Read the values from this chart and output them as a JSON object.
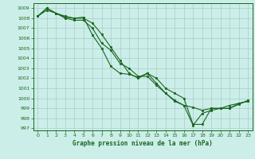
{
  "title": "Graphe pression niveau de la mer (hPa)",
  "bg_color": "#cceee8",
  "grid_color": "#aacccc",
  "line_color": "#1a6620",
  "marker_color": "#1a6620",
  "xlim": [
    -0.5,
    23.5
  ],
  "ylim": [
    996.8,
    1009.5
  ],
  "xticks": [
    0,
    1,
    2,
    3,
    4,
    5,
    6,
    7,
    8,
    9,
    10,
    11,
    12,
    13,
    14,
    15,
    16,
    17,
    18,
    19,
    20,
    21,
    22,
    23
  ],
  "yticks": [
    997,
    998,
    999,
    1000,
    1001,
    1002,
    1003,
    1004,
    1005,
    1006,
    1007,
    1008,
    1009
  ],
  "series": [
    [
      1008.2,
      1009.0,
      1008.5,
      1008.2,
      1008.0,
      1008.1,
      1006.3,
      1005.0,
      1003.2,
      1002.5,
      1002.4,
      1002.1,
      1002.5,
      1001.5,
      1000.5,
      999.8,
      999.3,
      999.1,
      998.8,
      999.0,
      999.0,
      999.3,
      999.5,
      999.7
    ],
    [
      1008.2,
      1009.0,
      1008.5,
      1008.1,
      1008.0,
      1008.0,
      1007.5,
      1006.4,
      1005.1,
      1003.8,
      1002.5,
      1002.0,
      1002.5,
      1002.0,
      1001.0,
      1000.5,
      1000.0,
      997.4,
      997.4,
      999.0,
      999.0,
      999.0,
      999.5,
      999.7
    ],
    [
      1008.2,
      1008.8,
      1008.5,
      1008.0,
      1007.8,
      1007.8,
      1007.0,
      1005.5,
      1004.8,
      1003.5,
      1003.0,
      1002.2,
      1002.2,
      1001.3,
      1000.5,
      999.7,
      999.3,
      997.3,
      998.5,
      998.8,
      999.0,
      999.0,
      999.4,
      999.8
    ]
  ]
}
